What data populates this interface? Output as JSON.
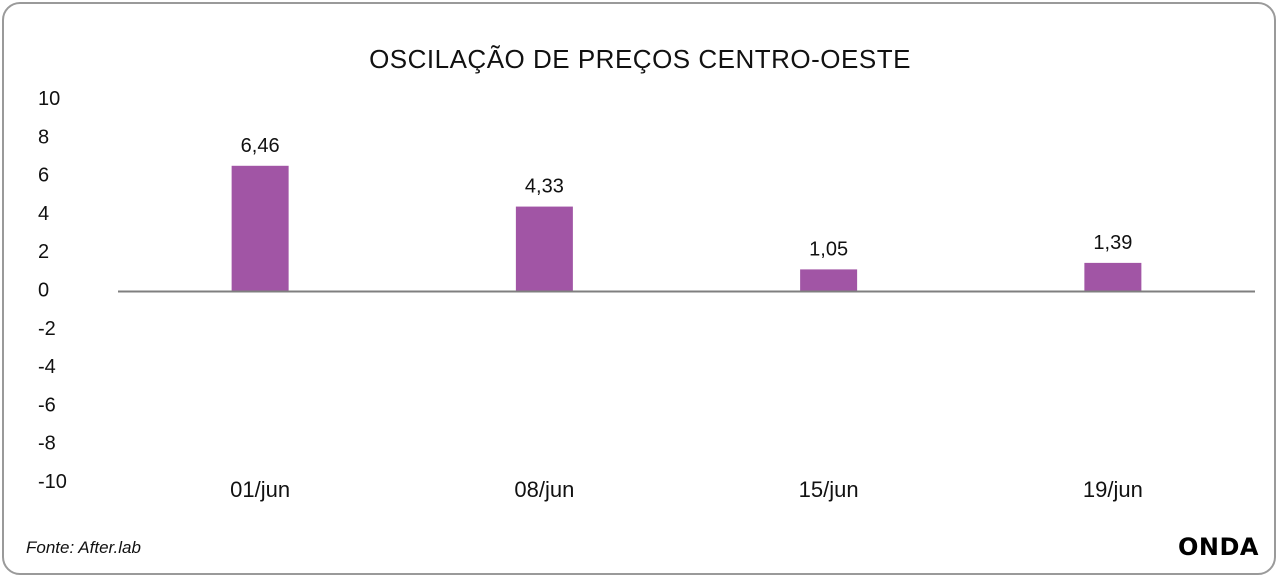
{
  "chart_data": {
    "type": "bar",
    "title": "OSCILAÇÃO DE PREÇOS CENTRO-OESTE",
    "categories": [
      "01/jun",
      "08/jun",
      "15/jun",
      "19/jun"
    ],
    "values": [
      6.46,
      4.33,
      1.05,
      1.39
    ],
    "data_labels": [
      "6,46",
      "4,33",
      "1,05",
      "1,39"
    ],
    "ylim": [
      -10,
      10
    ],
    "yticks": [
      10,
      8,
      6,
      4,
      2,
      0,
      -2,
      -4,
      -6,
      -8,
      -10
    ],
    "xlabel": "",
    "ylabel": "",
    "grid": false,
    "bar_color": "#a155a5",
    "axis_color": "#7f7f7f"
  },
  "footer": {
    "source": "Fonte: After.lab",
    "brand": "ONDA"
  }
}
